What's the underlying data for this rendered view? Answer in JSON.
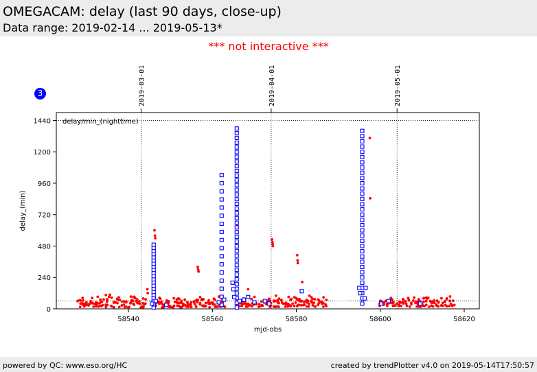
{
  "header": {
    "title": "OMEGACAM: delay (last 90 days, close-up)",
    "subtitle": "Data range: 2019-02-14 ... 2019-05-13*"
  },
  "notice": "*** not interactive ***",
  "badge": "3",
  "footer": {
    "left": "powered by QC: www.eso.org/HC",
    "right": "created by trendPlotter v4.0 on 2019-05-14T17:50:57"
  },
  "chart_data": {
    "type": "scatter",
    "xlabel": "mjd-obs",
    "ylabel": "delay_(min)",
    "plot_label": "delay/min_(nighttime)",
    "xlim": [
      58522.8,
      58623.6
    ],
    "ylim": [
      0,
      1500
    ],
    "x_ticks": [
      58540,
      58560,
      58580,
      58600,
      58620
    ],
    "y_ticks": [
      0,
      240,
      480,
      720,
      960,
      1200,
      1440
    ],
    "reference_line_y": 1440,
    "threshold_line_y": 60,
    "date_markers": [
      {
        "x": 58543.0,
        "label": "2019-03-01"
      },
      {
        "x": 58574.0,
        "label": "2019-04-01"
      },
      {
        "x": 58604.0,
        "label": "2019-05-01"
      }
    ],
    "red_clusters": [
      {
        "from": 58528,
        "to": 58544,
        "low": 10,
        "high": 110
      },
      {
        "from": 58546.5,
        "to": 58563,
        "low": 10,
        "high": 100
      },
      {
        "from": 58566,
        "to": 58575,
        "low": 15,
        "high": 100
      },
      {
        "from": 58575,
        "to": 58587,
        "low": 15,
        "high": 110
      },
      {
        "from": 58600,
        "to": 58617.5,
        "low": 15,
        "high": 100
      }
    ],
    "red_extra": [
      [
        58544.5,
        150
      ],
      [
        58544.6,
        120
      ],
      [
        58546.2,
        600
      ],
      [
        58546.3,
        560
      ],
      [
        58546.4,
        540
      ],
      [
        58556.5,
        320
      ],
      [
        58556.6,
        300
      ],
      [
        58556.7,
        285
      ],
      [
        58565.8,
        660
      ],
      [
        58565.9,
        640
      ],
      [
        58574.2,
        530
      ],
      [
        58574.3,
        510
      ],
      [
        58574.35,
        495
      ],
      [
        58574.4,
        480
      ],
      [
        58580.2,
        410
      ],
      [
        58580.3,
        370
      ],
      [
        58580.35,
        350
      ],
      [
        58581.4,
        205
      ],
      [
        58597.5,
        1305
      ],
      [
        58597.6,
        845
      ],
      [
        58568.5,
        150
      ]
    ],
    "blue_columns": [
      {
        "x": 58546.0,
        "from": 10,
        "to": 490,
        "step": 24
      },
      {
        "x": 58562.2,
        "from": 30,
        "to": 1060,
        "step": 62
      },
      {
        "x": 58565.8,
        "from": 10,
        "to": 1410,
        "step": 36
      },
      {
        "x": 58595.7,
        "from": 40,
        "to": 1390,
        "step": 40
      }
    ],
    "blue_extra": [
      [
        58545.6,
        40
      ],
      [
        58546.5,
        60
      ],
      [
        58549.0,
        30
      ],
      [
        58561.5,
        50
      ],
      [
        58562.8,
        70
      ],
      [
        58564.8,
        200
      ],
      [
        58565.0,
        150
      ],
      [
        58565.2,
        90
      ],
      [
        58566.5,
        60
      ],
      [
        58567.5,
        70
      ],
      [
        58568.5,
        90
      ],
      [
        58570.0,
        50
      ],
      [
        58572.5,
        60
      ],
      [
        58573.5,
        40
      ],
      [
        58581.3,
        135
      ],
      [
        58595.0,
        160
      ],
      [
        58595.2,
        120
      ],
      [
        58596.3,
        80
      ],
      [
        58596.5,
        160
      ],
      [
        58600.2,
        40
      ],
      [
        58602.0,
        60
      ],
      [
        58609.5,
        40
      ]
    ]
  }
}
